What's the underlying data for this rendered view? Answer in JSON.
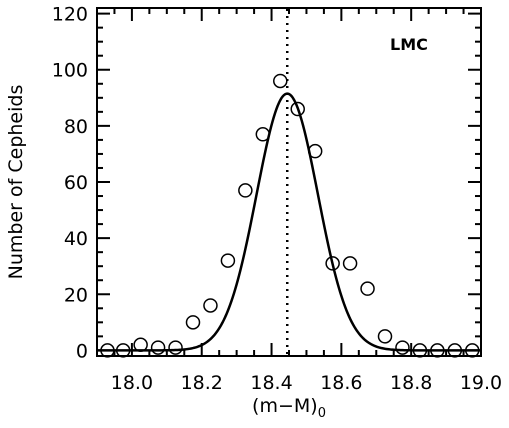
{
  "chart_data": {
    "type": "scatter",
    "title": "",
    "xlabel_main": "(m−M)",
    "xlabel_sub": "0",
    "ylabel": "Number of Cepheids",
    "xlim": [
      17.9,
      19.0
    ],
    "ylim": [
      -2,
      122
    ],
    "x_ticks": [
      "18.0",
      "18.2",
      "18.4",
      "18.6",
      "18.8",
      "19.0"
    ],
    "x_tick_values": [
      18.0,
      18.2,
      18.4,
      18.6,
      18.8,
      19.0
    ],
    "y_ticks": [
      "0",
      "20",
      "40",
      "60",
      "80",
      "100",
      "120"
    ],
    "y_tick_values": [
      0,
      20,
      40,
      60,
      80,
      100,
      120
    ],
    "annotation": "LMC",
    "grid": false,
    "vertical_line_x": 18.445,
    "points": {
      "x": [
        17.93,
        17.975,
        18.025,
        18.075,
        18.125,
        18.175,
        18.225,
        18.275,
        18.325,
        18.375,
        18.425,
        18.475,
        18.525,
        18.575,
        18.625,
        18.675,
        18.725,
        18.775,
        18.825,
        18.875,
        18.925,
        18.975
      ],
      "y": [
        0,
        0,
        2,
        1,
        1,
        10,
        16,
        32,
        57,
        77,
        96,
        86,
        71,
        31,
        31,
        22,
        5,
        1,
        0,
        0,
        0,
        0
      ]
    },
    "fit": {
      "type": "gaussian",
      "amplitude": 91.5,
      "mean": 18.445,
      "sigma": 0.088
    },
    "colors": {
      "axes": "#000000",
      "markers": "#000000",
      "fit_line": "#000000",
      "background": "#ffffff"
    }
  }
}
